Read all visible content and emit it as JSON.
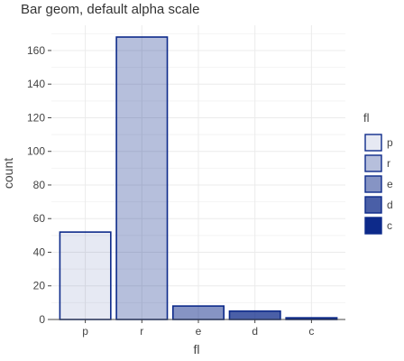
{
  "chart_data": {
    "type": "bar",
    "title": "Bar geom, default alpha scale",
    "xlabel": "fl",
    "ylabel": "count",
    "categories": [
      "p",
      "r",
      "e",
      "d",
      "c"
    ],
    "values": [
      52,
      168,
      8,
      5,
      1
    ],
    "ylim": [
      0,
      175
    ],
    "yticks": [
      0,
      20,
      40,
      60,
      80,
      100,
      120,
      140,
      160
    ],
    "grid": true,
    "bar_fill_color": "#0d2a8a",
    "bar_outline_color": "#0d2a8a",
    "alpha": [
      0.1,
      0.3,
      0.5,
      0.75,
      1.0
    ],
    "legend": {
      "title": "fl",
      "position": "right",
      "entries": [
        "p",
        "r",
        "e",
        "d",
        "c"
      ]
    }
  }
}
